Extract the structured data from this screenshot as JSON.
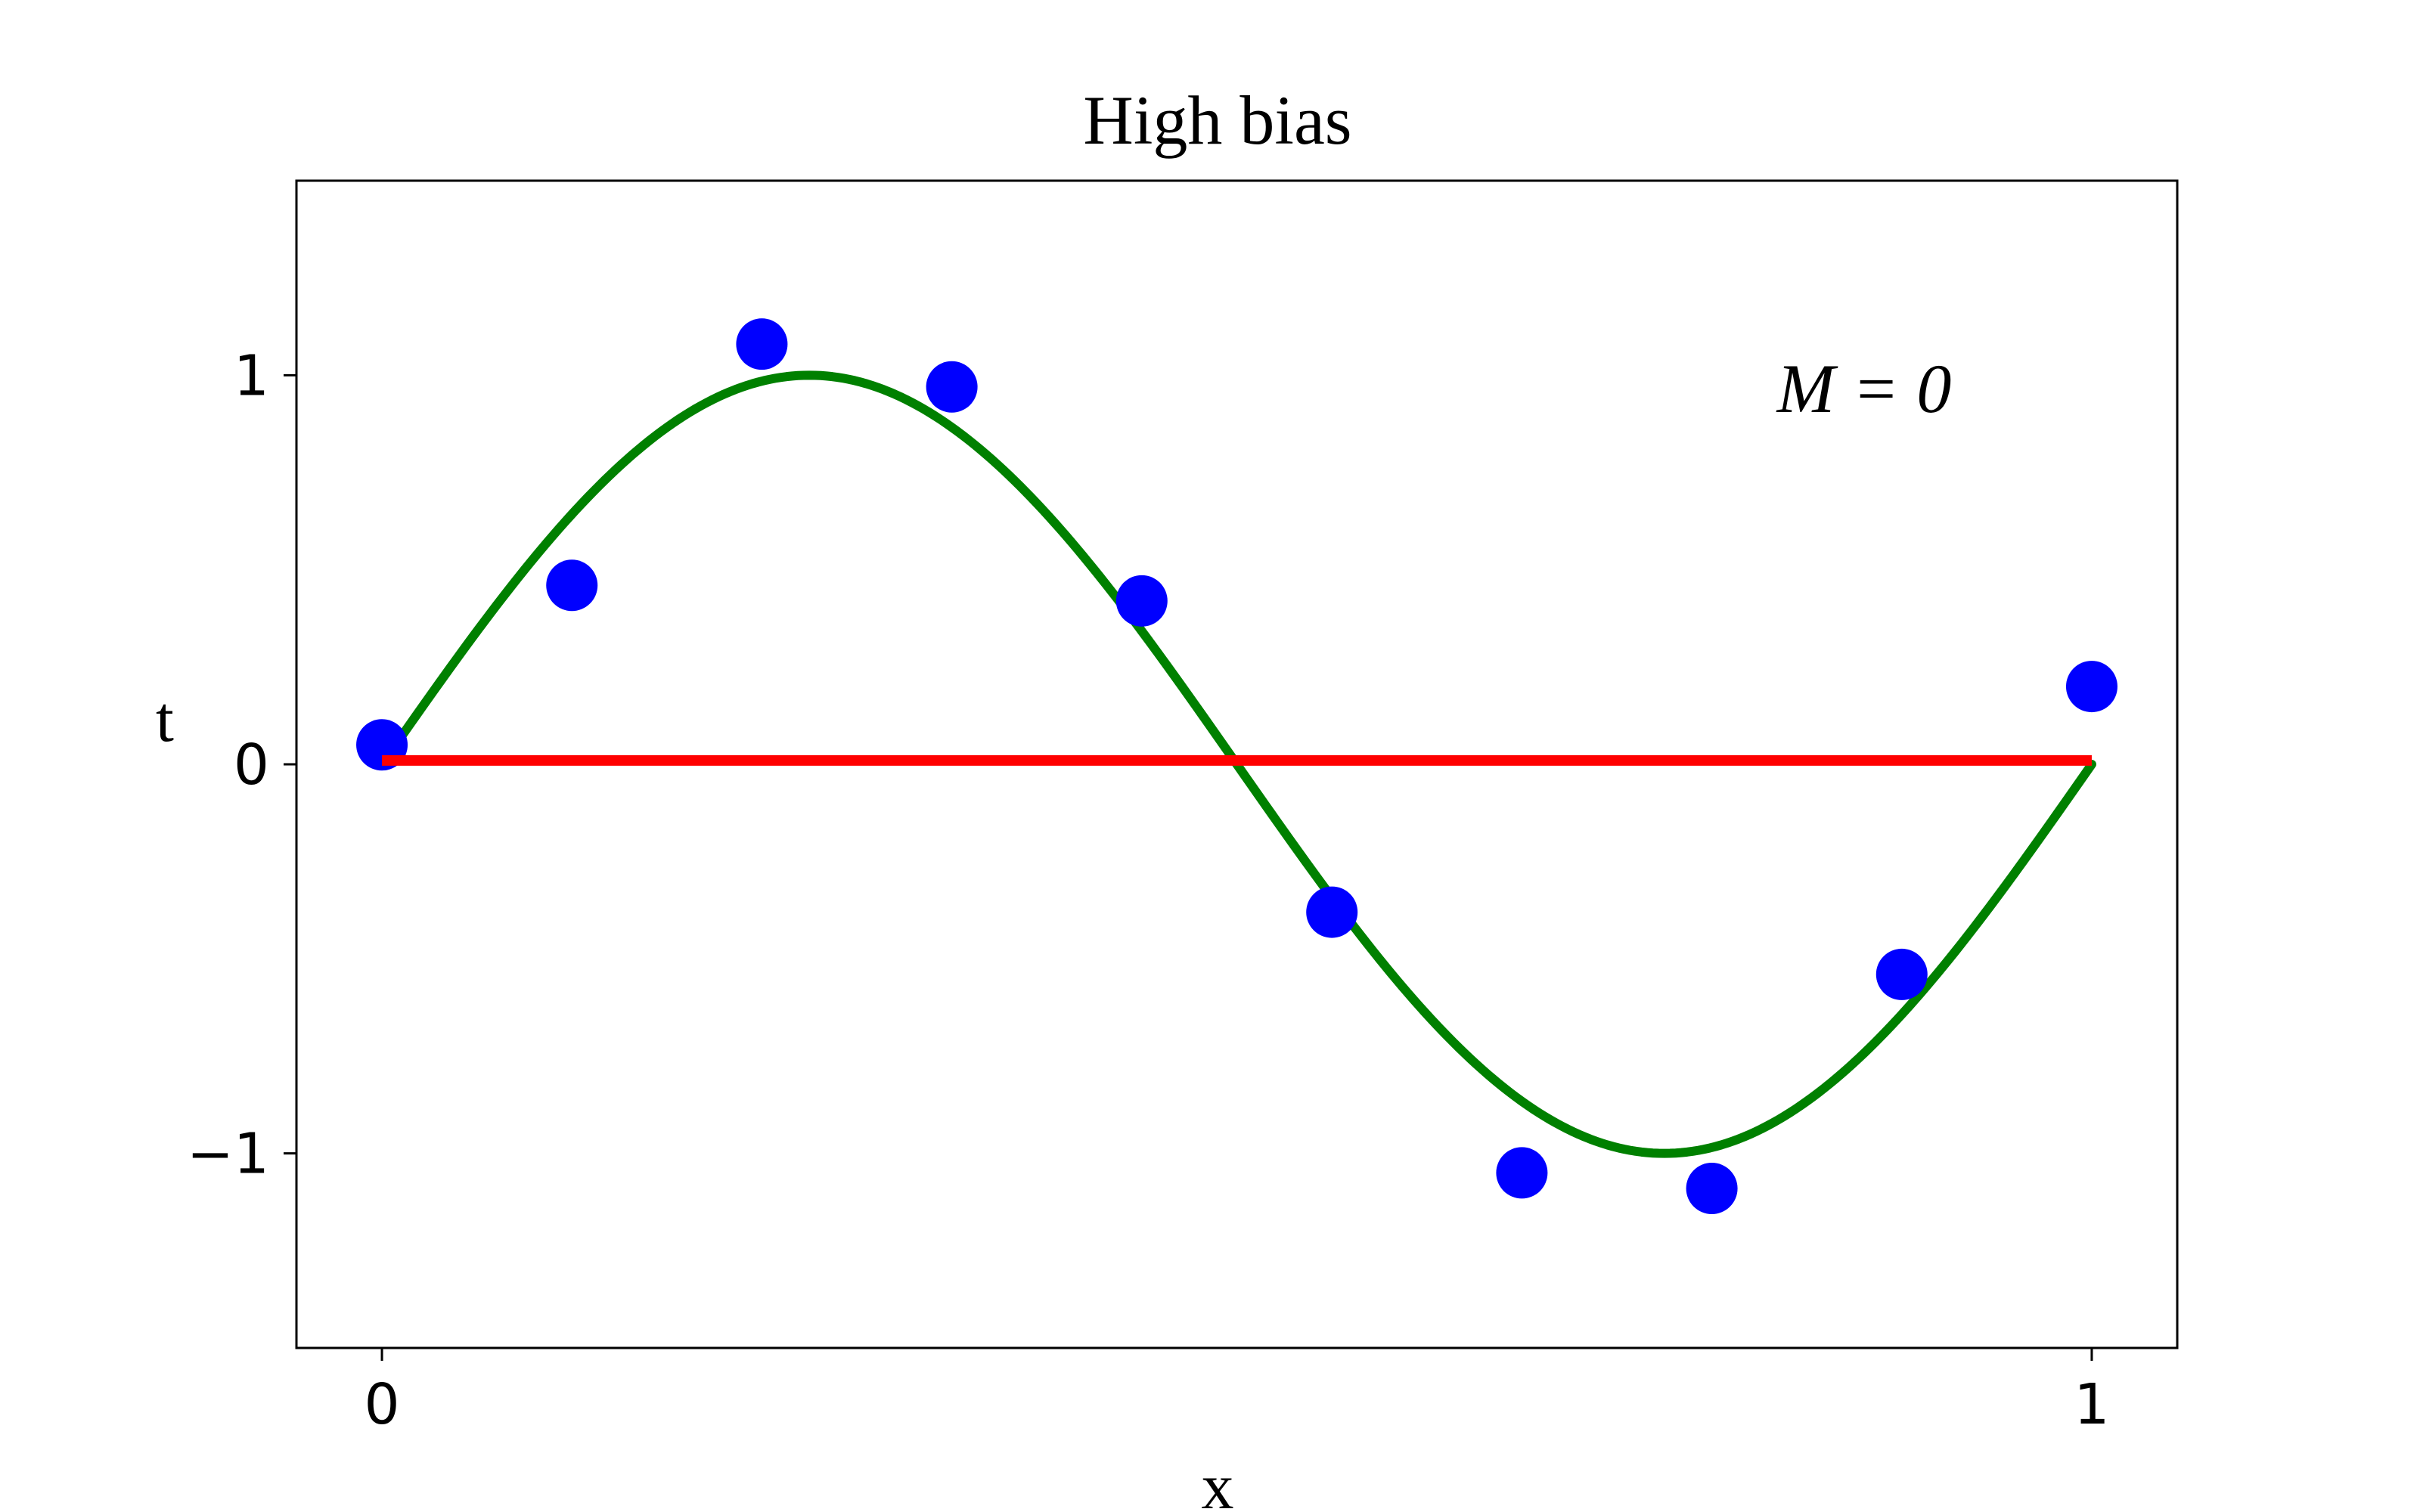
{
  "chart_data": {
    "type": "scatter",
    "title": "High bias",
    "xlabel": "x",
    "ylabel": "t",
    "annotation": "M = 0",
    "xlim": [
      -0.05,
      1.05
    ],
    "ylim": [
      -1.5,
      1.5
    ],
    "xticks": [
      0,
      1
    ],
    "xtick_labels": [
      "0",
      "1"
    ],
    "yticks": [
      1,
      0,
      -1
    ],
    "ytick_labels": [
      "1",
      "0",
      "−1"
    ],
    "grid": false,
    "series": [
      {
        "kind": "points",
        "color": "#0000ff",
        "x": [
          0.0,
          0.1111,
          0.2222,
          0.3333,
          0.4444,
          0.5556,
          0.6667,
          0.7778,
          0.8889,
          1.0
        ],
        "y": [
          0.05,
          0.46,
          1.08,
          0.97,
          0.42,
          -0.38,
          -1.05,
          -1.09,
          -0.54,
          0.2
        ]
      },
      {
        "kind": "curve",
        "color": "#008000",
        "function": "sin(2*pi*x)",
        "x_range": [
          0,
          1
        ]
      },
      {
        "kind": "line",
        "color": "#ff0000",
        "x": [
          0,
          1
        ],
        "y": [
          0.01,
          0.01
        ]
      }
    ]
  }
}
